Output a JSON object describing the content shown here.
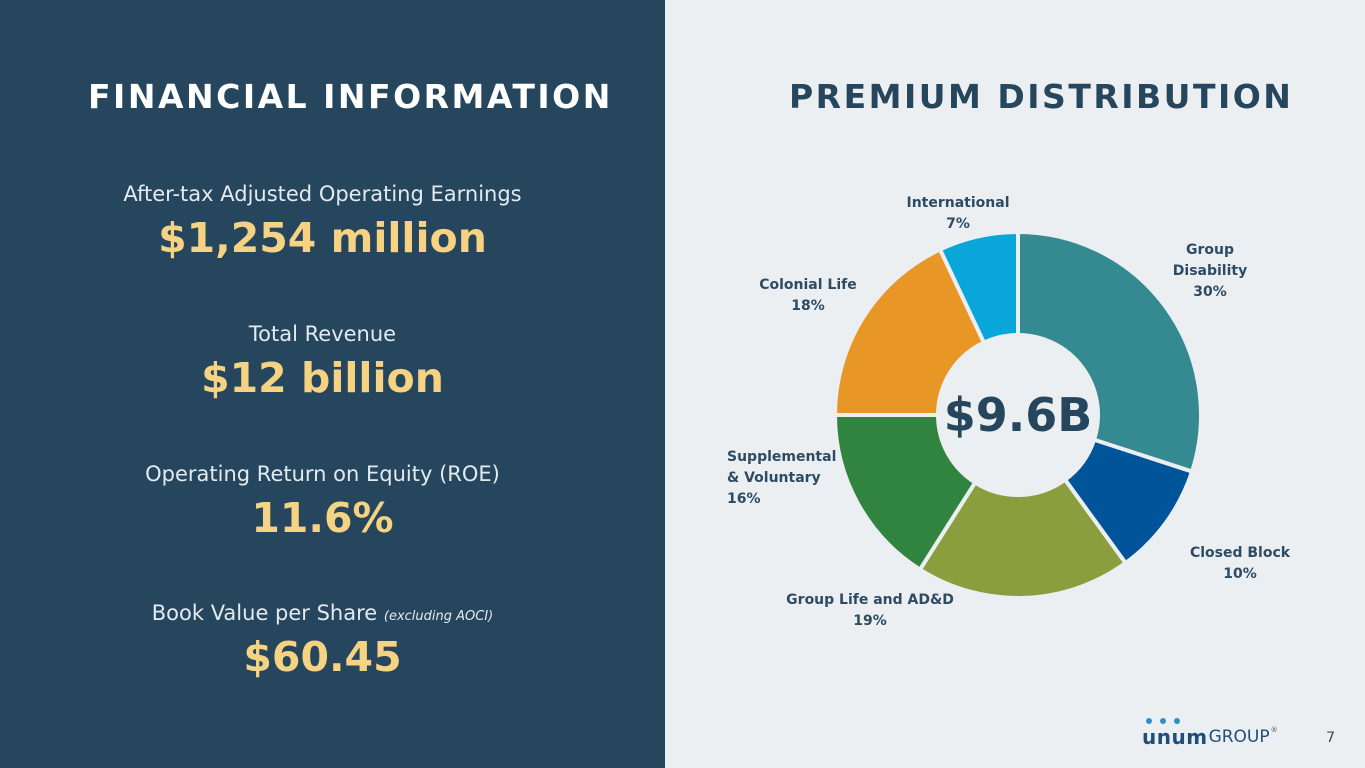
{
  "left": {
    "heading": "FINANCIAL INFORMATION",
    "metrics": [
      {
        "label": "After-tax Adjusted Operating Earnings",
        "note": "",
        "value": "$1,254 million"
      },
      {
        "label": "Total Revenue",
        "note": "",
        "value": "$12 billion"
      },
      {
        "label": "Operating Return on Equity (ROE)",
        "note": "",
        "value": "11.6%"
      },
      {
        "label": "Book Value per Share",
        "note": "(excluding AOCI)",
        "value": "$60.45"
      }
    ]
  },
  "right": {
    "heading": "PREMIUM DISTRIBUTION"
  },
  "chart_data": {
    "type": "pie",
    "title": "",
    "center_label": "$9.6B",
    "slices": [
      {
        "label": [
          "Group",
          "Disability"
        ],
        "percent_label": "30%",
        "value": 30,
        "color": "#358a91"
      },
      {
        "label": [
          "Closed Block"
        ],
        "percent_label": "10%",
        "value": 10,
        "color": "#00549a"
      },
      {
        "label": [
          "Group Life and AD&D"
        ],
        "percent_label": "19%",
        "value": 19,
        "color": "#8a9e3e"
      },
      {
        "label": [
          "Supplemental",
          "& Voluntary"
        ],
        "percent_label": "16%",
        "value": 16,
        "color": "#31843f"
      },
      {
        "label": [
          "Colonial Life"
        ],
        "percent_label": "18%",
        "value": 18,
        "color": "#e89726"
      },
      {
        "label": [
          "International"
        ],
        "percent_label": "7%",
        "value": 7,
        "color": "#08a6d9"
      }
    ]
  },
  "footer": {
    "logo_brand": "unum",
    "logo_group": "GROUP",
    "logo_reg": "®",
    "page_number": "7"
  }
}
